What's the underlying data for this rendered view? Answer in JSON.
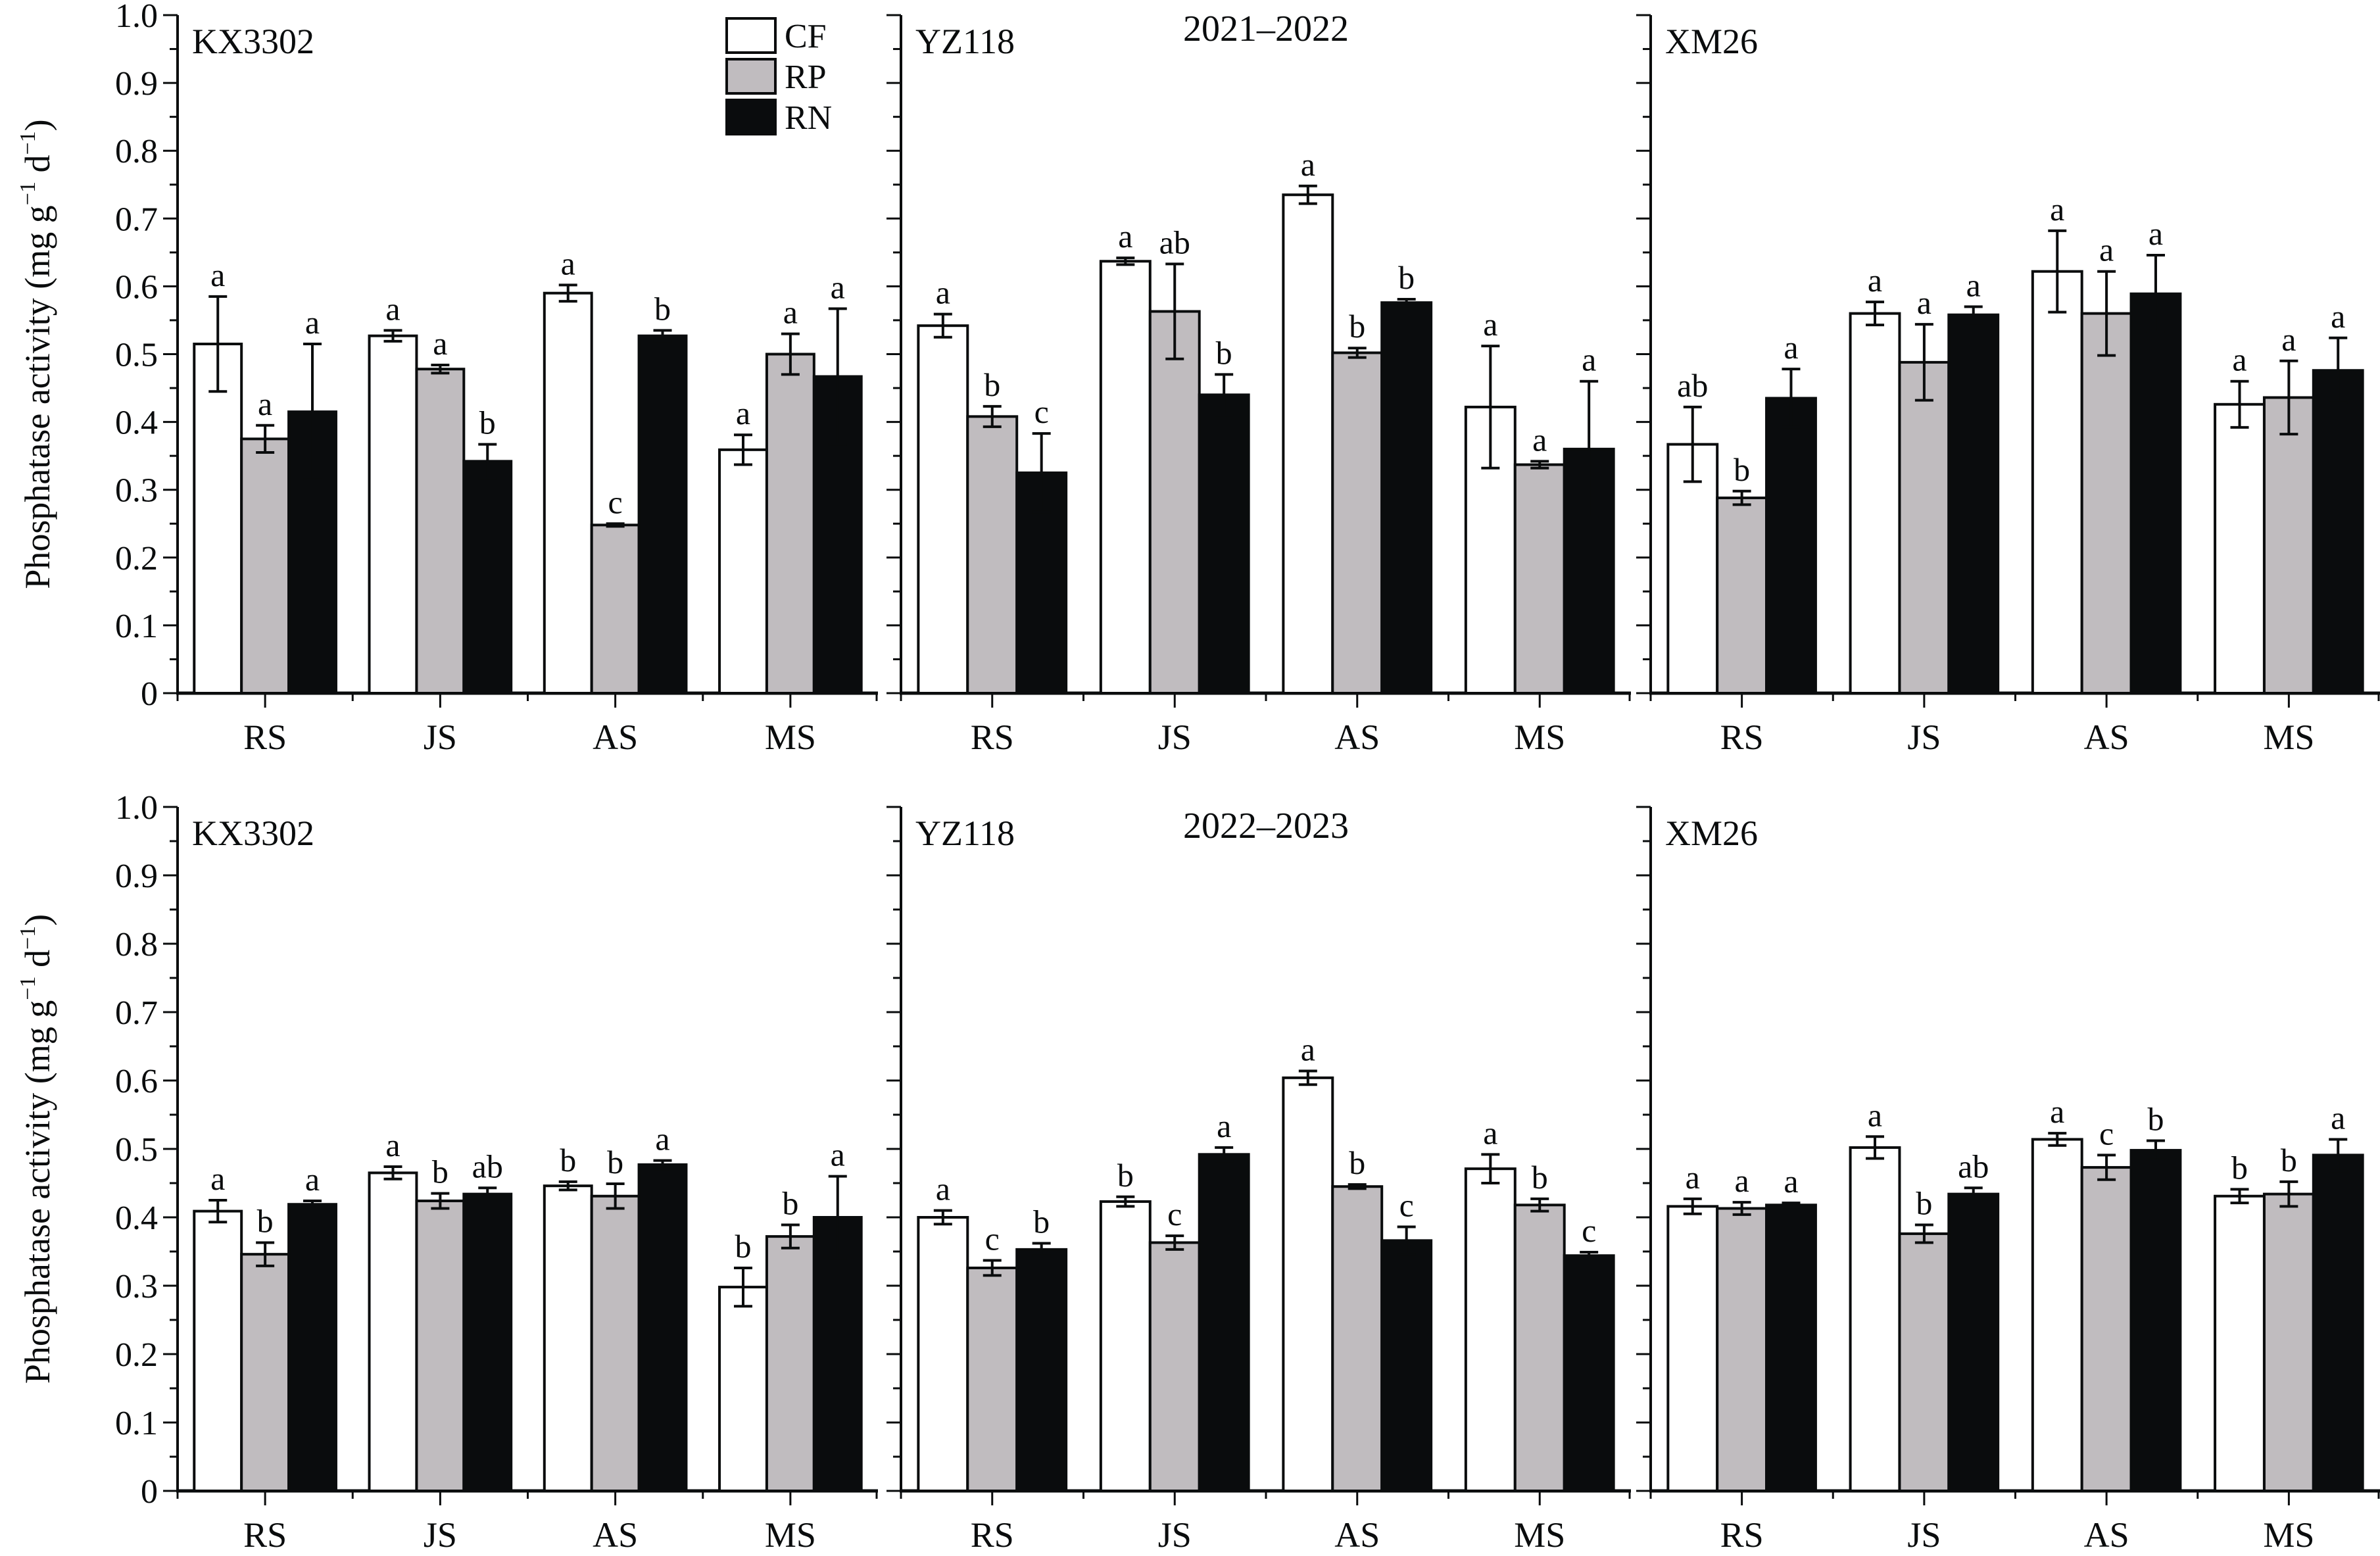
{
  "chart_data": {
    "type": "bar",
    "ylabel": "Phosphatase activity (mg g⁻¹ d⁻¹)",
    "ylabel_parts": {
      "main": "Phosphatase activity (mg g",
      "sup1": "−1",
      "mid": " d",
      "sup2": "−1",
      "end": ")"
    },
    "ylim": [
      0,
      1.0
    ],
    "yticks": [
      "0",
      "0.1",
      "0.2",
      "0.3",
      "0.4",
      "0.5",
      "0.6",
      "0.7",
      "0.8",
      "0.9",
      "1.0"
    ],
    "categories": [
      "RS",
      "JS",
      "AS",
      "MS"
    ],
    "legend": {
      "placement": "top-right of first panel",
      "entries": [
        {
          "name": "CF",
          "color": "#ffffff"
        },
        {
          "name": "RP",
          "color": "#c0bcbf"
        },
        {
          "name": "RN",
          "color": "#0a0c0d"
        }
      ]
    },
    "rows": [
      {
        "title": "2021–2022",
        "panels": [
          {
            "cultivar": "KX3302",
            "series": [
              {
                "name": "CF",
                "values": [
                  0.515,
                  0.527,
                  0.59,
                  0.359
                ],
                "errors": [
                  0.07,
                  0.008,
                  0.012,
                  0.022
                ],
                "letters": [
                  "a",
                  "a",
                  "a",
                  "a"
                ]
              },
              {
                "name": "RP",
                "values": [
                  0.375,
                  0.478,
                  0.248,
                  0.5
                ],
                "errors": [
                  0.02,
                  0.006,
                  0.002,
                  0.03
                ],
                "letters": [
                  "a",
                  "a",
                  "c",
                  "a"
                ]
              },
              {
                "name": "RN",
                "values": [
                  0.415,
                  0.342,
                  0.527,
                  0.467
                ],
                "errors": [
                  0.1,
                  0.025,
                  0.008,
                  0.1
                ],
                "letters": [
                  "a",
                  "b",
                  "b",
                  "a"
                ]
              }
            ]
          },
          {
            "cultivar": "YZ118",
            "series": [
              {
                "name": "CF",
                "values": [
                  0.542,
                  0.637,
                  0.735,
                  0.422
                ],
                "errors": [
                  0.017,
                  0.005,
                  0.013,
                  0.09
                ],
                "letters": [
                  "a",
                  "a",
                  "a",
                  "a"
                ]
              },
              {
                "name": "RP",
                "values": [
                  0.408,
                  0.563,
                  0.502,
                  0.337
                ],
                "errors": [
                  0.015,
                  0.07,
                  0.007,
                  0.005
                ],
                "letters": [
                  "b",
                  "ab",
                  "b",
                  "a"
                ]
              },
              {
                "name": "RN",
                "values": [
                  0.325,
                  0.44,
                  0.576,
                  0.36
                ],
                "errors": [
                  0.058,
                  0.03,
                  0.005,
                  0.1
                ],
                "letters": [
                  "c",
                  "b",
                  "b",
                  "a"
                ]
              }
            ]
          },
          {
            "cultivar": "XM26",
            "series": [
              {
                "name": "CF",
                "values": [
                  0.367,
                  0.56,
                  0.622,
                  0.426
                ],
                "errors": [
                  0.055,
                  0.017,
                  0.06,
                  0.034
                ],
                "letters": [
                  "ab",
                  "a",
                  "a",
                  "a"
                ]
              },
              {
                "name": "RP",
                "values": [
                  0.288,
                  0.488,
                  0.56,
                  0.436
                ],
                "errors": [
                  0.01,
                  0.056,
                  0.062,
                  0.054
                ],
                "letters": [
                  "b",
                  "a",
                  "a",
                  "a"
                ]
              },
              {
                "name": "RN",
                "values": [
                  0.435,
                  0.558,
                  0.589,
                  0.476
                ],
                "errors": [
                  0.043,
                  0.012,
                  0.057,
                  0.048
                ],
                "letters": [
                  "a",
                  "a",
                  "a",
                  "a"
                ]
              }
            ]
          }
        ]
      },
      {
        "title": "2022–2023",
        "panels": [
          {
            "cultivar": "KX3302",
            "series": [
              {
                "name": "CF",
                "values": [
                  0.409,
                  0.465,
                  0.446,
                  0.298
                ],
                "errors": [
                  0.016,
                  0.009,
                  0.006,
                  0.028
                ],
                "letters": [
                  "a",
                  "a",
                  "b",
                  "b"
                ]
              },
              {
                "name": "RP",
                "values": [
                  0.346,
                  0.424,
                  0.431,
                  0.372
                ],
                "errors": [
                  0.017,
                  0.011,
                  0.018,
                  0.017
                ],
                "letters": [
                  "b",
                  "b",
                  "b",
                  "b"
                ]
              },
              {
                "name": "RN",
                "values": [
                  0.419,
                  0.434,
                  0.477,
                  0.4
                ],
                "errors": [
                  0.005,
                  0.009,
                  0.006,
                  0.06
                ],
                "letters": [
                  "a",
                  "ab",
                  "a",
                  "a"
                ]
              }
            ]
          },
          {
            "cultivar": "YZ118",
            "series": [
              {
                "name": "CF",
                "values": [
                  0.4,
                  0.423,
                  0.604,
                  0.471
                ],
                "errors": [
                  0.01,
                  0.007,
                  0.01,
                  0.021
                ],
                "letters": [
                  "a",
                  "b",
                  "a",
                  "a"
                ]
              },
              {
                "name": "RP",
                "values": [
                  0.326,
                  0.363,
                  0.445,
                  0.418
                ],
                "errors": [
                  0.011,
                  0.01,
                  0.003,
                  0.009
                ],
                "letters": [
                  "c",
                  "c",
                  "b",
                  "b"
                ]
              },
              {
                "name": "RN",
                "values": [
                  0.353,
                  0.492,
                  0.366,
                  0.344
                ],
                "errors": [
                  0.009,
                  0.01,
                  0.02,
                  0.005
                ],
                "letters": [
                  "b",
                  "a",
                  "c",
                  "c"
                ]
              }
            ]
          },
          {
            "cultivar": "XM26",
            "series": [
              {
                "name": "CF",
                "values": [
                  0.416,
                  0.502,
                  0.514,
                  0.431
                ],
                "errors": [
                  0.011,
                  0.016,
                  0.009,
                  0.01
                ],
                "letters": [
                  "a",
                  "a",
                  "a",
                  "b"
                ]
              },
              {
                "name": "RP",
                "values": [
                  0.413,
                  0.376,
                  0.473,
                  0.434
                ],
                "errors": [
                  0.009,
                  0.013,
                  0.018,
                  0.018
                ],
                "letters": [
                  "a",
                  "b",
                  "c",
                  "b"
                ]
              },
              {
                "name": "RN",
                "values": [
                  0.418,
                  0.434,
                  0.498,
                  0.491
                ],
                "errors": [
                  0.003,
                  0.009,
                  0.014,
                  0.023
                ],
                "letters": [
                  "a",
                  "ab",
                  "b",
                  "a"
                ]
              }
            ]
          }
        ]
      }
    ]
  }
}
